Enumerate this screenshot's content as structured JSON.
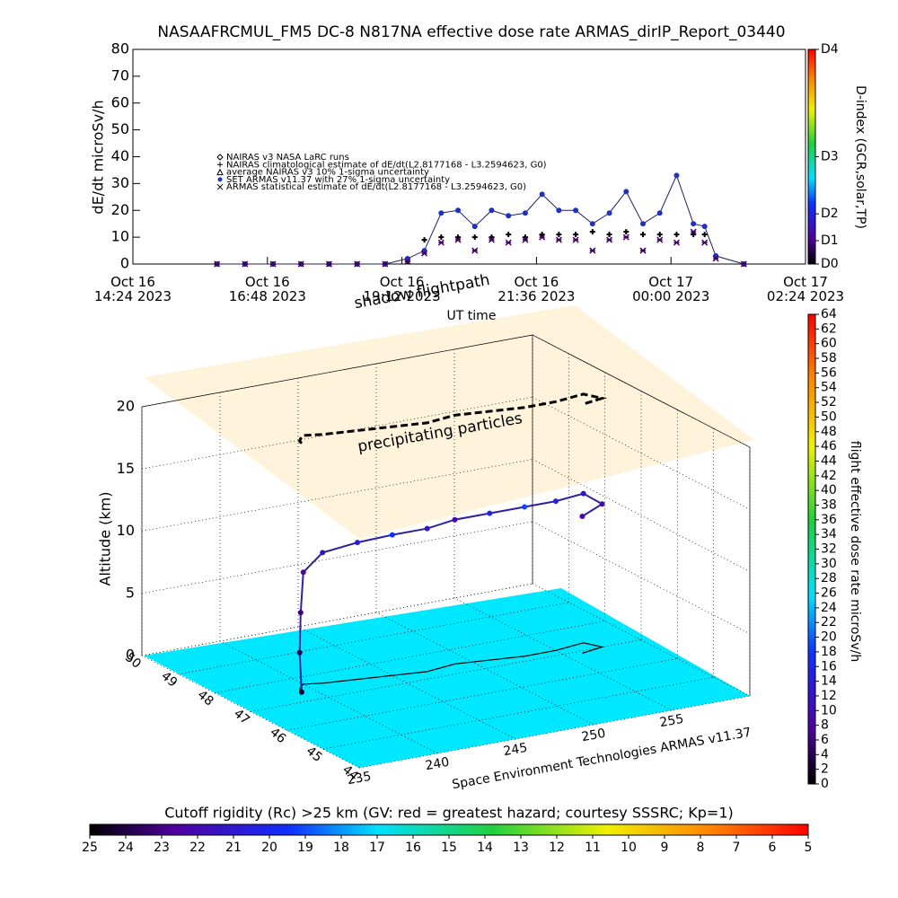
{
  "chart_data": [
    {
      "type": "line",
      "title": "NASAAFRCMUL_FM5 DC-8    N817NA effective dose rate ARMAS_dirIP_Report_03440",
      "y_label": "dE/dt microSv/h",
      "x_label": "UT time",
      "xlim": [
        0,
        12
      ],
      "xticks": [
        {
          "value": 0,
          "label": "Oct 16\n14:24 2023"
        },
        {
          "value": 2.4,
          "label": "Oct 16\n16:48 2023"
        },
        {
          "value": 4.8,
          "label": "Oct 16\n19:12 2023"
        },
        {
          "value": 7.2,
          "label": "Oct 16\n21:36 2023"
        },
        {
          "value": 9.6,
          "label": "Oct 17\n00:00 2023"
        },
        {
          "value": 12,
          "label": "Oct 17\n02:24 2023"
        }
      ],
      "ylim": [
        0,
        80
      ],
      "yticks": [
        0,
        10,
        20,
        30,
        40,
        50,
        60,
        70,
        80
      ],
      "x": [
        1.5,
        2,
        2.5,
        3,
        3.5,
        4,
        4.5,
        4.9,
        5.2,
        5.5,
        5.8,
        6.1,
        6.4,
        6.7,
        7.0,
        7.3,
        7.6,
        7.9,
        8.2,
        8.5,
        8.8,
        9.1,
        9.4,
        9.7,
        10.0,
        10.2,
        10.4,
        10.9
      ],
      "series": [
        {
          "name": "NAIRAS climatological estimate of dE/dt(L2.8177168 - L3.2594623, G0)",
          "color": "#000000",
          "marker": "plus",
          "values": [
            0,
            0,
            0,
            0,
            0,
            0,
            0,
            1,
            9,
            10,
            10,
            10,
            10,
            11,
            10,
            11,
            11,
            11,
            12,
            11,
            12,
            11,
            11,
            11,
            11,
            11,
            3,
            0
          ]
        },
        {
          "name": "SET ARMAS v11.37 with 27% 1-sigma uncertainty",
          "color": "#2030c0",
          "marker": "dot",
          "values": [
            0,
            0,
            0,
            0,
            0,
            0,
            0,
            2,
            5,
            19,
            20,
            14,
            20,
            18,
            19,
            26,
            20,
            20,
            15,
            19,
            27,
            15,
            19,
            33,
            15,
            14,
            3,
            0
          ]
        },
        {
          "name": "ARMAS statistical estimate of dE/dt(L2.8177168 - L3.2594623, G0)",
          "color": "#400060",
          "marker": "asterisk",
          "values": [
            0,
            0,
            0,
            0,
            0,
            0,
            0,
            1,
            4,
            8,
            9,
            5,
            9,
            8,
            9,
            10,
            9,
            9,
            5,
            9,
            10,
            5,
            9,
            8,
            12,
            8,
            2,
            0
          ]
        }
      ],
      "legend_notes": [
        "NAIRAS v3 NASA LaRC runs",
        "average NAIRAS v3 10% 1-sigma uncertainty"
      ],
      "colorbar": {
        "label": "D-index (GCR,solar,TP)",
        "ticks": [
          {
            "value": 0,
            "label": "D0"
          },
          {
            "value": 8.7,
            "label": "D1"
          },
          {
            "value": 18.7,
            "label": "D2"
          },
          {
            "value": 40,
            "label": "D3"
          },
          {
            "value": 80,
            "label": "D4"
          }
        ]
      }
    },
    {
      "type": "scatter3d",
      "z_label": "Altitude (km)",
      "annotations": [
        "shadow flightpath",
        "precipitating particles"
      ],
      "credit": "Space Environment Technologies ARMAS v11.37",
      "lonlim": [
        235,
        260
      ],
      "lonticks": [
        235,
        240,
        245,
        250,
        255
      ],
      "latlim": [
        44,
        50
      ],
      "latticks": [
        44,
        45,
        46,
        47,
        48,
        49,
        50
      ],
      "zlim": [
        0,
        20
      ],
      "zticks": [
        0,
        5,
        10,
        15,
        20
      ],
      "flight": {
        "lon": [
          239.2,
          239.3,
          239.6,
          240,
          241,
          243,
          245,
          247,
          249,
          251,
          253,
          255,
          257,
          257.5,
          256
        ],
        "lat": [
          47.4,
          47.5,
          47.6,
          47.7,
          47.6,
          47.5,
          47.4,
          47.3,
          47.4,
          47.3,
          47.2,
          47.2,
          47.3,
          47.0,
          46.9
        ],
        "alt": [
          0,
          3,
          6,
          9,
          10.5,
          11,
          11.3,
          11.5,
          11.6,
          11.8,
          12,
          12,
          12,
          11.5,
          11
        ],
        "dose": [
          2,
          4,
          6,
          8,
          12,
          14,
          18,
          12,
          10,
          16,
          19,
          14,
          12,
          10,
          8
        ]
      },
      "colorbar": {
        "label": "flight effective dose rate microSv/h",
        "lim": [
          0,
          64
        ],
        "ticks": [
          0,
          2,
          4,
          6,
          8,
          10,
          12,
          14,
          16,
          18,
          20,
          22,
          24,
          26,
          28,
          30,
          32,
          34,
          36,
          38,
          40,
          42,
          44,
          46,
          48,
          50,
          52,
          54,
          56,
          58,
          60,
          62,
          64
        ]
      },
      "rc_colorbar": {
        "title": "Cutoff rigidity (Rc) >25 km (GV: red = greatest hazard; courtesy SSSRC; Kp=1)",
        "lim": [
          25,
          5
        ],
        "ticks": [
          25,
          24,
          23,
          22,
          21,
          20,
          19,
          18,
          17,
          16,
          15,
          14,
          13,
          12,
          11,
          10,
          9,
          8,
          7,
          6,
          5
        ]
      }
    }
  ]
}
